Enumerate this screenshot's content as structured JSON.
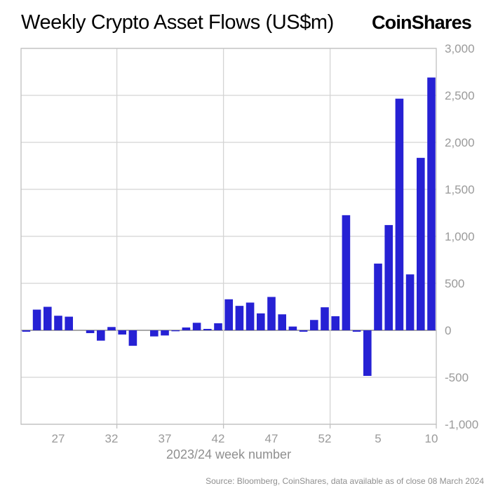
{
  "header": {
    "title": "Weekly Crypto Asset Flows (US$m)",
    "logo": "CoinShares"
  },
  "footer": {
    "source": "Source: Bloomberg, CoinShares, data available as of close 08 March 2024"
  },
  "chart_data": {
    "type": "bar",
    "title": "Weekly Crypto Asset Flows (US$m)",
    "xlabel": "2023/24 week number",
    "ylabel": "",
    "ylim": [
      -1000,
      3000
    ],
    "grid": true,
    "legend": false,
    "y_ticks": [
      "3,000",
      "2,500",
      "2,000",
      "1,500",
      "1,000",
      "500",
      "0",
      "-500",
      "-1,000"
    ],
    "y_tick_values": [
      3000,
      2500,
      2000,
      1500,
      1000,
      500,
      0,
      -500,
      -1000
    ],
    "categories": [
      "24",
      "25",
      "26",
      "27",
      "28",
      "29",
      "30",
      "31",
      "32",
      "33",
      "34",
      "35",
      "36",
      "37",
      "38",
      "39",
      "40",
      "41",
      "42",
      "43",
      "44",
      "45",
      "46",
      "47",
      "48",
      "49",
      "50",
      "51",
      "52",
      "1",
      "2",
      "3",
      "4",
      "5",
      "6",
      "7",
      "8",
      "9",
      "10"
    ],
    "values": [
      -15,
      220,
      250,
      155,
      145,
      0,
      -30,
      -110,
      35,
      -45,
      -165,
      0,
      -65,
      -55,
      -10,
      30,
      80,
      15,
      75,
      330,
      260,
      295,
      180,
      355,
      170,
      40,
      -15,
      110,
      245,
      150,
      1225,
      -15,
      -485,
      710,
      1120,
      2465,
      595,
      1835,
      2690
    ],
    "x_tick_labels": [
      "27",
      "32",
      "37",
      "42",
      "47",
      "52",
      "5",
      "10"
    ],
    "x_tick_indices": [
      3,
      8,
      13,
      18,
      23,
      28,
      33,
      38
    ],
    "v_gridlines_between": [
      8,
      18,
      28
    ],
    "colors": {
      "bar": "#2621d4",
      "grid": "#d4d4d4",
      "zero_line": "#a8a8a8",
      "border": "#c0c0c0",
      "tick_label": "#9a9a9a"
    }
  }
}
